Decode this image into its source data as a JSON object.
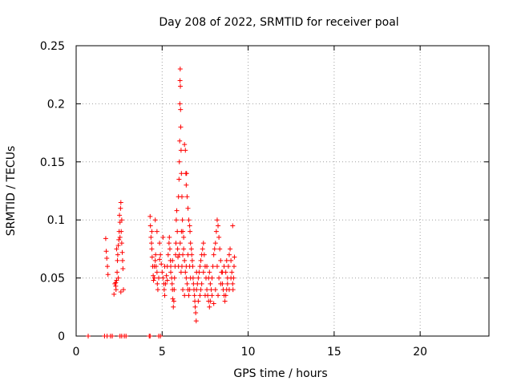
{
  "chart_data": {
    "type": "scatter",
    "title": "Day 208 of 2022, SRMTID for receiver poal",
    "xlabel": "GPS time / hours",
    "ylabel": "SRMTID / TECUs",
    "xlim": [
      0,
      24
    ],
    "ylim": [
      0,
      0.25
    ],
    "xticks": [
      0,
      5,
      10,
      15,
      20
    ],
    "xtick_labels": [
      "0",
      "5",
      "10",
      "15",
      "20"
    ],
    "yticks": [
      0,
      0.05,
      0.1,
      0.15,
      0.2,
      0.25
    ],
    "ytick_labels": [
      "0",
      "0.05",
      "0.1",
      "0.15",
      "0.2",
      "0.25"
    ],
    "grid": true,
    "marker": "plus",
    "marker_color": "#ff0000",
    "series": [
      {
        "name": "SRMTID",
        "points": [
          [
            0.7,
            0
          ],
          [
            1.65,
            0
          ],
          [
            1.8,
            0
          ],
          [
            2.0,
            0
          ],
          [
            2.1,
            0
          ],
          [
            2.55,
            0
          ],
          [
            2.65,
            0
          ],
          [
            2.8,
            0
          ],
          [
            2.9,
            0
          ],
          [
            4.25,
            0
          ],
          [
            4.3,
            0
          ],
          [
            4.8,
            0
          ],
          [
            4.9,
            0
          ],
          [
            1.72,
            0.084
          ],
          [
            1.75,
            0.073
          ],
          [
            1.78,
            0.067
          ],
          [
            1.82,
            0.06
          ],
          [
            1.85,
            0.053
          ],
          [
            2.2,
            0.036
          ],
          [
            2.25,
            0.045
          ],
          [
            2.3,
            0.043
          ],
          [
            2.32,
            0.04
          ],
          [
            2.35,
            0.048
          ],
          [
            2.38,
            0.055
          ],
          [
            2.4,
            0.065
          ],
          [
            2.42,
            0.07
          ],
          [
            2.45,
            0.078
          ],
          [
            2.48,
            0.083
          ],
          [
            2.5,
            0.09
          ],
          [
            2.52,
            0.104
          ],
          [
            2.55,
            0.098
          ],
          [
            2.58,
            0.11
          ],
          [
            2.6,
            0.115
          ],
          [
            2.62,
            0.09
          ],
          [
            2.65,
            0.08
          ],
          [
            2.68,
            0.072
          ],
          [
            2.7,
            0.065
          ],
          [
            2.72,
            0.058
          ],
          [
            2.75,
            0.04
          ],
          [
            2.6,
            0.038
          ],
          [
            2.45,
            0.05
          ],
          [
            2.35,
            0.075
          ],
          [
            2.3,
            0.046
          ],
          [
            2.55,
            0.085
          ],
          [
            2.65,
            0.1
          ],
          [
            4.3,
            0.103
          ],
          [
            4.32,
            0.095
          ],
          [
            4.35,
            0.085
          ],
          [
            4.38,
            0.08
          ],
          [
            4.4,
            0.075
          ],
          [
            4.42,
            0.068
          ],
          [
            4.45,
            0.06
          ],
          [
            4.48,
            0.052
          ],
          [
            4.5,
            0.048
          ],
          [
            4.55,
            0.05
          ],
          [
            4.6,
            0.065
          ],
          [
            4.62,
            0.07
          ],
          [
            4.65,
            0.06
          ],
          [
            4.7,
            0.055
          ],
          [
            4.72,
            0.045
          ],
          [
            4.75,
            0.04
          ],
          [
            4.8,
            0.05
          ],
          [
            4.85,
            0.066
          ],
          [
            4.9,
            0.07
          ],
          [
            4.95,
            0.062
          ],
          [
            5.0,
            0.055
          ],
          [
            5.05,
            0.05
          ],
          [
            5.1,
            0.045
          ],
          [
            5.12,
            0.04
          ],
          [
            5.15,
            0.035
          ],
          [
            5.2,
            0.045
          ],
          [
            5.25,
            0.052
          ],
          [
            5.3,
            0.06
          ],
          [
            5.35,
            0.07
          ],
          [
            5.4,
            0.08
          ],
          [
            5.42,
            0.085
          ],
          [
            5.45,
            0.075
          ],
          [
            5.48,
            0.065
          ],
          [
            5.5,
            0.06
          ],
          [
            5.55,
            0.05
          ],
          [
            5.58,
            0.045
          ],
          [
            5.6,
            0.04
          ],
          [
            5.62,
            0.032
          ],
          [
            5.65,
            0.025
          ],
          [
            5.68,
            0.03
          ],
          [
            5.7,
            0.04
          ],
          [
            5.72,
            0.05
          ],
          [
            5.75,
            0.06
          ],
          [
            5.78,
            0.07
          ],
          [
            5.8,
            0.08
          ],
          [
            5.82,
            0.1
          ],
          [
            5.85,
            0.108
          ],
          [
            5.88,
            0.09
          ],
          [
            5.9,
            0.075
          ],
          [
            5.92,
            0.068
          ],
          [
            5.95,
            0.06
          ],
          [
            4.6,
            0.1
          ],
          [
            4.7,
            0.09
          ],
          [
            4.85,
            0.08
          ],
          [
            5.05,
            0.085
          ],
          [
            5.15,
            0.06
          ],
          [
            5.3,
            0.048
          ],
          [
            5.5,
            0.055
          ],
          [
            5.6,
            0.065
          ],
          [
            4.4,
            0.09
          ],
          [
            4.55,
            0.06
          ],
          [
            5.95,
            0.12
          ],
          [
            5.98,
            0.135
          ],
          [
            6.0,
            0.15
          ],
          [
            6.02,
            0.168
          ],
          [
            6.03,
            0.2
          ],
          [
            6.04,
            0.22
          ],
          [
            6.05,
            0.23
          ],
          [
            6.06,
            0.215
          ],
          [
            6.07,
            0.195
          ],
          [
            6.08,
            0.18
          ],
          [
            6.1,
            0.16
          ],
          [
            6.12,
            0.14
          ],
          [
            6.15,
            0.12
          ],
          [
            6.18,
            0.1
          ],
          [
            6.2,
            0.09
          ],
          [
            6.25,
            0.085
          ],
          [
            6.3,
            0.165
          ],
          [
            6.35,
            0.16
          ],
          [
            6.38,
            0.14
          ],
          [
            6.4,
            0.13
          ],
          [
            6.42,
            0.14
          ],
          [
            6.45,
            0.12
          ],
          [
            6.5,
            0.11
          ],
          [
            6.55,
            0.1
          ],
          [
            6.6,
            0.095
          ],
          [
            6.62,
            0.09
          ],
          [
            6.65,
            0.08
          ],
          [
            6.7,
            0.075
          ],
          [
            6.72,
            0.07
          ],
          [
            6.75,
            0.065
          ],
          [
            6.78,
            0.06
          ],
          [
            6.8,
            0.05
          ],
          [
            6.82,
            0.045
          ],
          [
            6.85,
            0.04
          ],
          [
            6.88,
            0.035
          ],
          [
            6.9,
            0.03
          ],
          [
            6.92,
            0.025
          ],
          [
            6.95,
            0.02
          ],
          [
            6.98,
            0.013
          ],
          [
            6.1,
            0.055
          ],
          [
            6.15,
            0.06
          ],
          [
            6.2,
            0.07
          ],
          [
            6.25,
            0.075
          ],
          [
            6.3,
            0.065
          ],
          [
            6.35,
            0.055
          ],
          [
            6.4,
            0.05
          ],
          [
            6.45,
            0.045
          ],
          [
            6.5,
            0.04
          ],
          [
            6.55,
            0.035
          ],
          [
            6.6,
            0.04
          ],
          [
            6.65,
            0.05
          ],
          [
            6.2,
            0.04
          ],
          [
            6.3,
            0.035
          ],
          [
            6.4,
            0.06
          ],
          [
            6.5,
            0.07
          ],
          [
            6.6,
            0.06
          ],
          [
            6.0,
            0.07
          ],
          [
            6.05,
            0.08
          ],
          [
            6.12,
            0.09
          ],
          [
            7.0,
            0.04
          ],
          [
            7.05,
            0.045
          ],
          [
            7.1,
            0.05
          ],
          [
            7.15,
            0.055
          ],
          [
            7.2,
            0.06
          ],
          [
            7.25,
            0.065
          ],
          [
            7.3,
            0.07
          ],
          [
            7.35,
            0.075
          ],
          [
            7.4,
            0.08
          ],
          [
            7.45,
            0.07
          ],
          [
            7.5,
            0.06
          ],
          [
            7.55,
            0.05
          ],
          [
            7.6,
            0.04
          ],
          [
            7.65,
            0.035
          ],
          [
            7.7,
            0.03
          ],
          [
            7.75,
            0.025
          ],
          [
            7.8,
            0.03
          ],
          [
            7.85,
            0.04
          ],
          [
            7.9,
            0.05
          ],
          [
            7.95,
            0.06
          ],
          [
            8.0,
            0.07
          ],
          [
            8.05,
            0.075
          ],
          [
            8.1,
            0.08
          ],
          [
            8.15,
            0.09
          ],
          [
            8.2,
            0.1
          ],
          [
            8.25,
            0.095
          ],
          [
            8.3,
            0.085
          ],
          [
            8.35,
            0.075
          ],
          [
            8.4,
            0.065
          ],
          [
            8.45,
            0.055
          ],
          [
            8.5,
            0.045
          ],
          [
            8.55,
            0.04
          ],
          [
            8.6,
            0.035
          ],
          [
            8.65,
            0.03
          ],
          [
            8.7,
            0.035
          ],
          [
            8.75,
            0.04
          ],
          [
            8.8,
            0.05
          ],
          [
            8.85,
            0.06
          ],
          [
            8.9,
            0.07
          ],
          [
            8.95,
            0.075
          ],
          [
            9.0,
            0.065
          ],
          [
            9.05,
            0.055
          ],
          [
            9.1,
            0.045
          ],
          [
            9.12,
            0.04
          ],
          [
            9.15,
            0.05
          ],
          [
            9.18,
            0.06
          ],
          [
            9.2,
            0.068
          ],
          [
            9.1,
            0.095
          ],
          [
            7.1,
            0.03
          ],
          [
            7.2,
            0.035
          ],
          [
            7.3,
            0.045
          ],
          [
            7.4,
            0.055
          ],
          [
            7.6,
            0.06
          ],
          [
            7.7,
            0.05
          ],
          [
            7.8,
            0.045
          ],
          [
            7.9,
            0.035
          ],
          [
            8.0,
            0.028
          ],
          [
            8.1,
            0.04
          ],
          [
            8.2,
            0.06
          ],
          [
            8.3,
            0.05
          ],
          [
            8.4,
            0.045
          ],
          [
            8.5,
            0.055
          ],
          [
            8.6,
            0.06
          ],
          [
            8.7,
            0.055
          ],
          [
            8.8,
            0.045
          ],
          [
            8.9,
            0.04
          ],
          [
            9.0,
            0.05
          ],
          [
            7.0,
            0.055
          ],
          [
            7.25,
            0.04
          ],
          [
            7.5,
            0.035
          ],
          [
            7.75,
            0.055
          ],
          [
            8.25,
            0.035
          ],
          [
            8.75,
            0.065
          ]
        ]
      }
    ]
  }
}
